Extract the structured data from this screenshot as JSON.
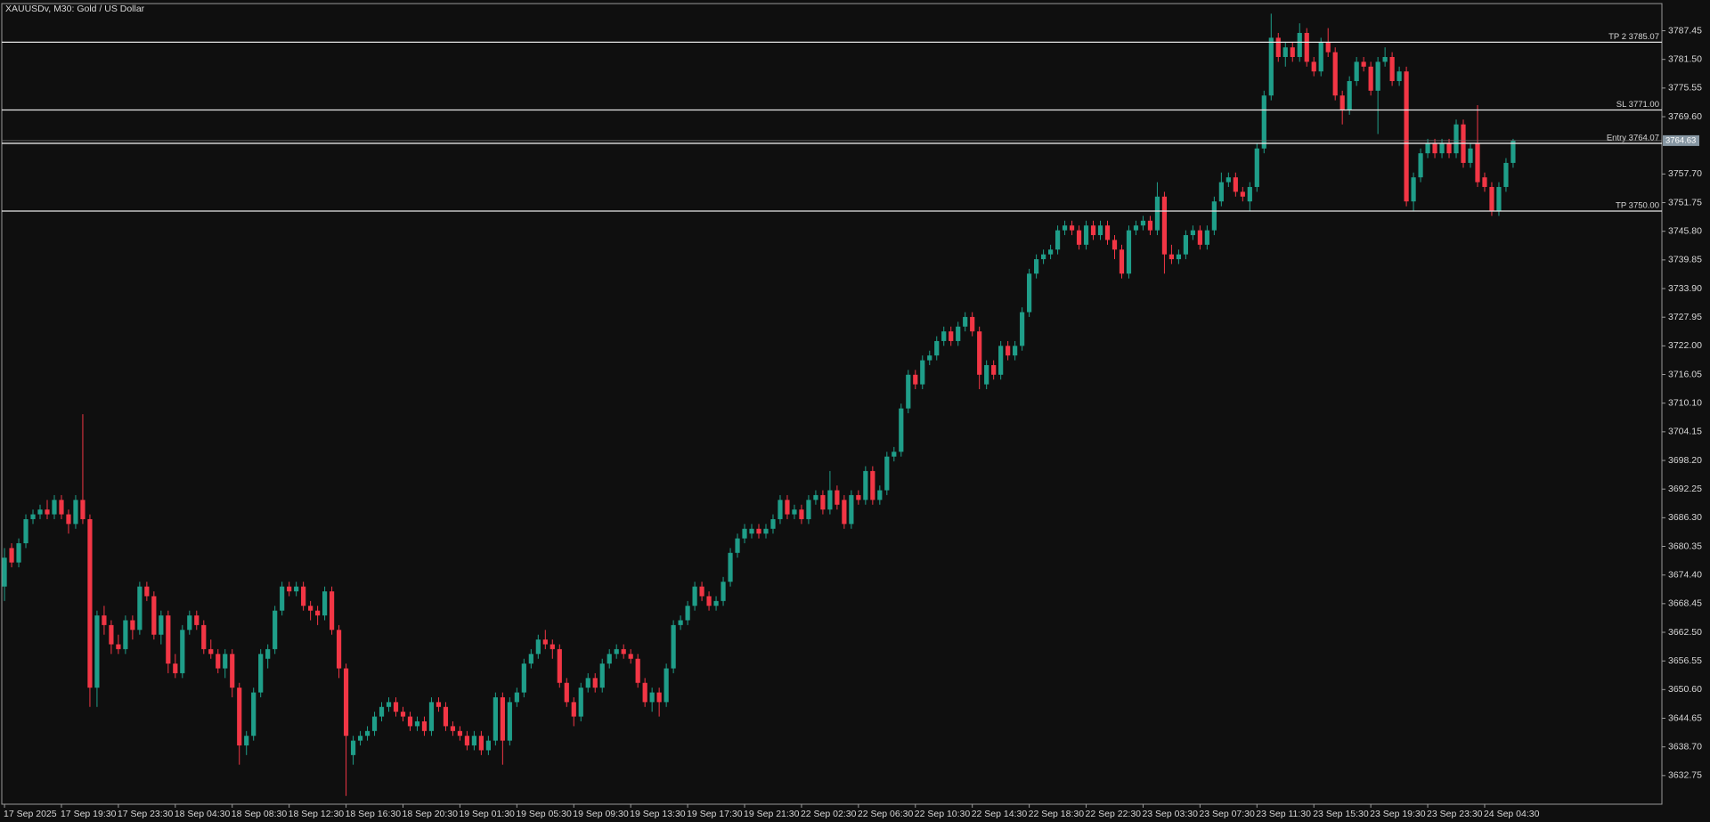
{
  "chart_data": {
    "type": "candlestick",
    "title": "XAUUSDv, M30:  Gold / US Dollar",
    "up_color": "#1f9e89",
    "down_color": "#f23645",
    "level_color": "#e6e6e6",
    "tag_color": "#8797a3",
    "ylim": [
      3626.8,
      3793.1
    ],
    "yticks": [
      3787.45,
      {
        "value": 3781.5,
        "label": "3781.50"
      },
      3775.55,
      {
        "value": 3769.6,
        "label": "3769.60"
      },
      {
        "value": 3757.7,
        "label": "3757.70"
      },
      3751.75,
      {
        "value": 3745.8,
        "label": "3745.80"
      },
      3739.85,
      {
        "value": 3733.9,
        "label": "3733.90"
      },
      3727.95,
      {
        "value": 3722,
        "label": "3722.00"
      },
      3716.05,
      {
        "value": 3710.1,
        "label": "3710.10"
      },
      3704.15,
      {
        "value": 3698.2,
        "label": "3698.20"
      },
      3692.25,
      {
        "value": 3686.3,
        "label": "3686.30"
      },
      3680.35,
      {
        "value": 3674.4,
        "label": "3674.40"
      },
      3668.45,
      {
        "value": 3662.5,
        "label": "3662.50"
      },
      3656.55,
      {
        "value": 3650.6,
        "label": "3650.60"
      },
      3644.65,
      {
        "value": 3638.7,
        "label": "3638.70"
      },
      3632.75
    ],
    "levels": [
      {
        "label": "TP 2 3785.07",
        "value": 3785.07
      },
      {
        "label": "SL 3771.00",
        "value": 3771
      },
      {
        "label": "Entry 3764.07",
        "value": 3764.07
      },
      {
        "label": "TP 3750.00",
        "value": 3750
      }
    ],
    "last_price": 3764.63,
    "categories": [
      "17 Sep 2025",
      null,
      null,
      null,
      null,
      null,
      null,
      null,
      "17 Sep 19:30",
      null,
      null,
      null,
      null,
      null,
      null,
      null,
      "17 Sep 23:30",
      null,
      null,
      null,
      null,
      null,
      null,
      null,
      "18 Sep 04:30",
      null,
      null,
      null,
      null,
      null,
      null,
      null,
      "18 Sep 08:30",
      null,
      null,
      null,
      null,
      null,
      null,
      null,
      "18 Sep 12:30",
      null,
      null,
      null,
      null,
      null,
      null,
      null,
      "18 Sep 16:30",
      null,
      null,
      null,
      null,
      null,
      null,
      null,
      "18 Sep 20:30",
      null,
      null,
      null,
      null,
      null,
      null,
      null,
      "19 Sep 01:30",
      null,
      null,
      null,
      null,
      null,
      null,
      null,
      "19 Sep 05:30",
      null,
      null,
      null,
      null,
      null,
      null,
      null,
      "19 Sep 09:30",
      null,
      null,
      null,
      null,
      null,
      null,
      null,
      "19 Sep 13:30",
      null,
      null,
      null,
      null,
      null,
      null,
      null,
      "19 Sep 17:30",
      null,
      null,
      null,
      null,
      null,
      null,
      null,
      "19 Sep 21:30",
      null,
      null,
      null,
      null,
      null,
      null,
      null,
      "22 Sep 02:30",
      null,
      null,
      null,
      null,
      null,
      null,
      null,
      "22 Sep 06:30",
      null,
      null,
      null,
      null,
      null,
      null,
      null,
      "22 Sep 10:30",
      null,
      null,
      null,
      null,
      null,
      null,
      null,
      "22 Sep 14:30",
      null,
      null,
      null,
      null,
      null,
      null,
      null,
      "22 Sep 18:30",
      null,
      null,
      null,
      null,
      null,
      null,
      null,
      "22 Sep 22:30",
      null,
      null,
      null,
      null,
      null,
      null,
      null,
      "23 Sep 03:30",
      null,
      null,
      null,
      null,
      null,
      null,
      null,
      "23 Sep 07:30",
      null,
      null,
      null,
      null,
      null,
      null,
      null,
      "23 Sep 11:30",
      null,
      null,
      null,
      null,
      null,
      null,
      null,
      "23 Sep 15:30",
      null,
      null,
      null,
      null,
      null,
      null,
      null,
      "23 Sep 19:30",
      null,
      null,
      null,
      null,
      null,
      null,
      null,
      "23 Sep 23:30",
      null,
      null,
      null,
      null,
      null,
      null,
      null,
      "24 Sep 04:30",
      null,
      null,
      null,
      null
    ],
    "open": [
      3672,
      3680,
      3677,
      3681,
      3686,
      3687,
      3688,
      3687,
      3690,
      3687,
      3685,
      3690,
      3686,
      3651,
      3666,
      3664,
      3660,
      3659,
      3665,
      3663,
      3672,
      3670,
      3662,
      3666,
      3656,
      3654,
      3663,
      3666,
      3664,
      3659,
      3658,
      3655,
      3658,
      3651,
      3639,
      3641,
      3650,
      3657,
      3659,
      3667,
      3672,
      3671,
      3672,
      3668,
      3667,
      3666,
      3671,
      3663,
      3655,
      3637,
      3640,
      3641,
      3642,
      3645,
      3647,
      3648,
      3646,
      3645,
      3643,
      3644,
      3642,
      3648,
      3647,
      3643,
      3642,
      3641,
      3639,
      3641,
      3638,
      3640,
      3649,
      3640,
      3648,
      3650,
      3656,
      3658,
      3661,
      3660,
      3659,
      3652,
      3648,
      3645,
      3651,
      3653,
      3651,
      3656,
      3658,
      3659,
      3658,
      3657,
      3652,
      3648,
      3650,
      3648,
      3655,
      3664,
      3665,
      3668,
      3672,
      3670,
      3668,
      3669,
      3673,
      3679,
      3682,
      3683,
      3684,
      3683,
      3684,
      3686,
      3690,
      3687,
      3688,
      3686,
      3690,
      3691,
      3688,
      3692,
      3690,
      3685,
      3691,
      3690,
      3696,
      3690,
      3692,
      3699,
      3700,
      3709,
      3716,
      3714,
      3719,
      3720,
      3723,
      3725,
      3723,
      3726,
      3728,
      3725,
      3714,
      3718,
      3716,
      3722,
      3720,
      3722,
      3729,
      3737,
      3740,
      3741,
      3742,
      3746,
      3747,
      3746,
      3743,
      3747,
      3745,
      3747,
      3744,
      3742,
      3737,
      3746,
      3747,
      3748,
      3746,
      3753,
      3741,
      3740,
      3741,
      3745,
      3746,
      3743,
      3746,
      3752,
      3756,
      3757,
      3754,
      3752,
      3755,
      3763,
      3774,
      3786,
      3782,
      3784,
      3782,
      3787,
      3781,
      3779,
      3785,
      3783,
      3774,
      3771,
      3777,
      3781,
      3780,
      3775,
      3781,
      3782,
      3777,
      3779,
      3752,
      3757,
      3762,
      3764,
      3762,
      3764,
      3762,
      3768,
      3760,
      3764,
      3757,
      3755,
      3750,
      3755,
      3760
    ],
    "high": [
      3680,
      3681,
      3682,
      3687,
      3688,
      3689,
      3690,
      3691,
      3691,
      3688,
      3691,
      3707.8,
      3687,
      3667,
      3668,
      3665,
      3662,
      3666,
      3666,
      3673,
      3673,
      3671,
      3667,
      3667,
      3658,
      3664,
      3667,
      3667,
      3665,
      3661,
      3659,
      3659,
      3659,
      3652,
      3642,
      3651,
      3659,
      3660,
      3668,
      3673,
      3673,
      3673,
      3673,
      3669,
      3668,
      3672,
      3672,
      3664,
      3656,
      3641,
      3642,
      3643,
      3646,
      3648,
      3649,
      3649,
      3647,
      3646,
      3645,
      3645,
      3649,
      3649,
      3648,
      3644,
      3643,
      3642,
      3642,
      3642,
      3641,
      3650,
      3650,
      3649,
      3651,
      3657,
      3659,
      3662,
      3663,
      3661,
      3660,
      3653,
      3649,
      3652,
      3654,
      3654,
      3657,
      3659,
      3660,
      3660,
      3659,
      3658,
      3653,
      3651,
      3651,
      3656,
      3665,
      3666,
      3669,
      3673,
      3673,
      3671,
      3670,
      3674,
      3680,
      3683,
      3685,
      3685,
      3685,
      3685,
      3687,
      3691,
      3691,
      3689,
      3689,
      3691,
      3692,
      3692,
      3696,
      3693,
      3691,
      3692,
      3692,
      3697,
      3697,
      3693,
      3700,
      3701,
      3710,
      3717,
      3717,
      3720,
      3721,
      3724,
      3726,
      3726,
      3727,
      3729,
      3729,
      3726,
      3719,
      3719,
      3723,
      3723,
      3723,
      3730,
      3738,
      3741,
      3742,
      3743,
      3747,
      3748,
      3748,
      3747,
      3748,
      3748,
      3748,
      3748,
      3745,
      3743,
      3747,
      3748,
      3749,
      3749,
      3756,
      3754,
      3743,
      3742,
      3746,
      3747,
      3747,
      3747,
      3753,
      3758,
      3758,
      3758,
      3755,
      3756,
      3764,
      3775,
      3791,
      3787,
      3785,
      3785,
      3789,
      3788,
      3782,
      3786,
      3788,
      3784,
      3775,
      3778,
      3782,
      3782,
      3781,
      3782,
      3784,
      3783,
      3780,
      3780,
      3758,
      3763,
      3765,
      3765,
      3765,
      3765,
      3769,
      3769,
      3764,
      3772,
      3758,
      3756,
      3756,
      3761,
      3765
    ],
    "low": [
      3669,
      3676,
      3676,
      3680,
      3685,
      3686,
      3686,
      3686,
      3686,
      3683,
      3684,
      3685,
      3647,
      3647,
      3662,
      3658,
      3658,
      3658,
      3661,
      3662,
      3669,
      3661,
      3660,
      3654,
      3653,
      3653,
      3662,
      3663,
      3658,
      3657,
      3654,
      3653,
      3649,
      3635,
      3637,
      3640,
      3649,
      3655,
      3658,
      3666,
      3670,
      3670,
      3667,
      3665,
      3664,
      3665,
      3662,
      3653,
      3628.5,
      3635,
      3639,
      3640,
      3641,
      3644,
      3646,
      3645,
      3644,
      3642,
      3642,
      3641,
      3641,
      3646,
      3642,
      3641,
      3640,
      3638,
      3638,
      3637,
      3637,
      3639,
      3635,
      3639,
      3647,
      3649,
      3655,
      3657,
      3659,
      3657,
      3651,
      3647,
      3643,
      3644,
      3650,
      3650,
      3650,
      3655,
      3657,
      3657,
      3656,
      3651,
      3647,
      3646,
      3645,
      3647,
      3654,
      3663,
      3664,
      3667,
      3669,
      3667,
      3667,
      3668,
      3672,
      3678,
      3681,
      3682,
      3682,
      3682,
      3683,
      3685,
      3686,
      3686,
      3685,
      3685,
      3689,
      3687,
      3687,
      3688,
      3684,
      3684,
      3689,
      3689,
      3689,
      3689,
      3691,
      3698,
      3699,
      3708,
      3713,
      3713,
      3718,
      3719,
      3722,
      3722,
      3722,
      3725,
      3724,
      3713,
      3713,
      3715,
      3715,
      3719,
      3719,
      3721,
      3728,
      3736,
      3739,
      3740,
      3741,
      3745,
      3745,
      3742,
      3742,
      3744,
      3744,
      3743,
      3740,
      3736,
      3736,
      3745,
      3746,
      3745,
      3745,
      3737,
      3739,
      3739,
      3740,
      3744,
      3742,
      3742,
      3745,
      3751,
      3755,
      3753,
      3752,
      3750,
      3754,
      3762,
      3773,
      3781,
      3780,
      3781,
      3781,
      3780,
      3778,
      3778,
      3782,
      3773,
      3768,
      3770,
      3776,
      3779,
      3774,
      3766,
      3780,
      3776,
      3776,
      3751,
      3750,
      3756,
      3761,
      3761,
      3761,
      3761,
      3761,
      3759,
      3759,
      3755,
      3754,
      3749,
      3749,
      3754,
      3759
    ],
    "close": [
      3678,
      3677,
      3681,
      3686,
      3687,
      3688,
      3687,
      3690,
      3687,
      3685,
      3690,
      3686,
      3651,
      3666,
      3664,
      3660,
      3659,
      3665,
      3663,
      3672,
      3670,
      3662,
      3666,
      3656,
      3654,
      3663,
      3666,
      3664,
      3659,
      3658,
      3655,
      3658,
      3651,
      3639,
      3641,
      3650,
      3658,
      3659,
      3667,
      3672,
      3671,
      3672,
      3668,
      3667,
      3666,
      3671,
      3663,
      3655,
      3641,
      3640,
      3641,
      3642,
      3645,
      3647,
      3648,
      3646,
      3645,
      3643,
      3644,
      3642,
      3648,
      3647,
      3643,
      3642,
      3641,
      3639,
      3641,
      3638,
      3640,
      3649,
      3640,
      3648,
      3650,
      3656,
      3658,
      3661,
      3660,
      3659,
      3652,
      3648,
      3645,
      3651,
      3653,
      3651,
      3656,
      3658,
      3659,
      3658,
      3657,
      3652,
      3648,
      3650,
      3648,
      3655,
      3664,
      3665,
      3668,
      3672,
      3670,
      3668,
      3669,
      3673,
      3679,
      3682,
      3684,
      3684,
      3683,
      3684,
      3686,
      3690,
      3687,
      3688,
      3686,
      3690,
      3691,
      3688,
      3692,
      3689,
      3685,
      3691,
      3690,
      3696,
      3690,
      3692,
      3699,
      3700,
      3709,
      3716,
      3714,
      3719,
      3720,
      3723,
      3725,
      3723,
      3726,
      3728,
      3725,
      3716,
      3718,
      3716,
      3722,
      3720,
      3722,
      3729,
      3737,
      3740,
      3741,
      3742,
      3746,
      3747,
      3746,
      3743,
      3747,
      3745,
      3747,
      3744,
      3742,
      3737,
      3746,
      3747,
      3748,
      3746,
      3753,
      3741,
      3740,
      3741,
      3745,
      3746,
      3743,
      3746,
      3752,
      3756,
      3757,
      3754,
      3753,
      3755,
      3763,
      3774,
      3786,
      3782,
      3784,
      3782,
      3787,
      3781,
      3779,
      3785,
      3783,
      3774,
      3771,
      3777,
      3781,
      3780,
      3775,
      3781,
      3782,
      3777,
      3779,
      3752,
      3757,
      3762,
      3764,
      3762,
      3764,
      3762,
      3768,
      3760,
      3763,
      3756,
      3755,
      3750,
      3755,
      3760,
      3764.63
    ]
  }
}
